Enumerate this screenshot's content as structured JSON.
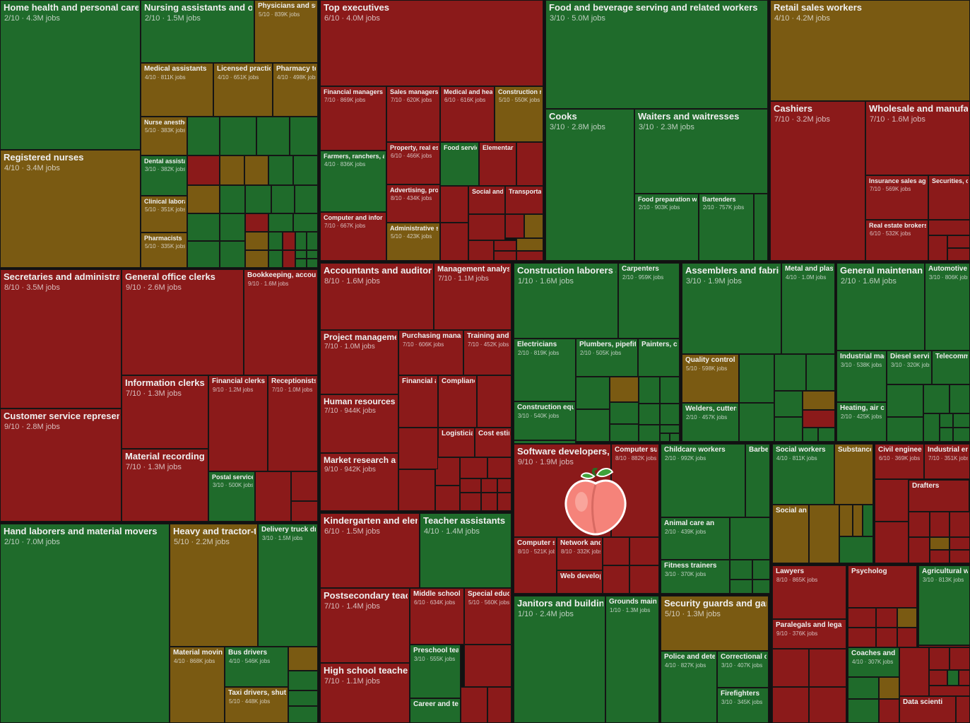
{
  "chart_data": {
    "type": "treemap",
    "title": "",
    "color_scale": {
      "low": "#1f6b2b",
      "mid": "#7a5a12",
      "high": "#8b1a1a"
    },
    "nodes": [
      {
        "name": "Home health and personal care",
        "score": "2/10",
        "jobs": "4.3M jobs"
      },
      {
        "name": "Registered nurses",
        "score": "4/10",
        "jobs": "3.4M jobs"
      },
      {
        "name": "Nursing assistants and or",
        "score": "2/10",
        "jobs": "1.5M jobs"
      },
      {
        "name": "Physicians and surg",
        "score": "5/10",
        "jobs": "839K jobs"
      },
      {
        "name": "Medical assistants",
        "score": "4/10",
        "jobs": "811K jobs"
      },
      {
        "name": "Licensed practical",
        "score": "4/10",
        "jobs": "651K jobs"
      },
      {
        "name": "Pharmacy tec",
        "score": "4/10",
        "jobs": "498K jobs"
      },
      {
        "name": "Nurse anesthe",
        "score": "5/10",
        "jobs": "383K jobs"
      },
      {
        "name": "Dental assista",
        "score": "3/10",
        "jobs": "382K jobs"
      },
      {
        "name": "Clinical labora",
        "score": "5/10",
        "jobs": "351K jobs"
      },
      {
        "name": "Pharmacists",
        "score": "5/10",
        "jobs": "335K jobs"
      },
      {
        "name": "Top executives",
        "score": "6/10",
        "jobs": "4.0M jobs"
      },
      {
        "name": "Financial managers",
        "score": "7/10",
        "jobs": "869K jobs"
      },
      {
        "name": "Sales managers",
        "score": "7/10",
        "jobs": "620K jobs"
      },
      {
        "name": "Medical and hea",
        "score": "6/10",
        "jobs": "616K jobs"
      },
      {
        "name": "Construction r",
        "score": "5/10",
        "jobs": "550K jobs"
      },
      {
        "name": "Farmers, ranchers, a",
        "score": "4/10",
        "jobs": "836K jobs"
      },
      {
        "name": "Property, real es",
        "score": "6/10",
        "jobs": "466K jobs"
      },
      {
        "name": "Food servic",
        "score": "",
        "jobs": ""
      },
      {
        "name": "Elementar",
        "score": "",
        "jobs": ""
      },
      {
        "name": "Advertising, pro",
        "score": "8/10",
        "jobs": "434K jobs"
      },
      {
        "name": "Social and",
        "score": "",
        "jobs": ""
      },
      {
        "name": "Transporta",
        "score": "",
        "jobs": ""
      },
      {
        "name": "Computer and infor",
        "score": "7/10",
        "jobs": "667K jobs"
      },
      {
        "name": "Administrative s",
        "score": "5/10",
        "jobs": "423K jobs"
      },
      {
        "name": "Food and beverage serving and related workers",
        "score": "3/10",
        "jobs": "5.0M jobs"
      },
      {
        "name": "Cooks",
        "score": "3/10",
        "jobs": "2.8M jobs"
      },
      {
        "name": "Waiters and waitresses",
        "score": "3/10",
        "jobs": "2.3M jobs"
      },
      {
        "name": "Food preparation w",
        "score": "2/10",
        "jobs": "903K jobs"
      },
      {
        "name": "Bartenders",
        "score": "2/10",
        "jobs": "757K jobs"
      },
      {
        "name": "Retail sales workers",
        "score": "4/10",
        "jobs": "4.2M jobs"
      },
      {
        "name": "Cashiers",
        "score": "7/10",
        "jobs": "3.2M jobs"
      },
      {
        "name": "Wholesale and manufac",
        "score": "7/10",
        "jobs": "1.6M jobs"
      },
      {
        "name": "Insurance sales age",
        "score": "7/10",
        "jobs": "569K jobs"
      },
      {
        "name": "Securities, c",
        "score": "",
        "jobs": ""
      },
      {
        "name": "Real estate brokers",
        "score": "6/10",
        "jobs": "532K jobs"
      },
      {
        "name": "Secretaries and administrat",
        "score": "8/10",
        "jobs": "3.5M jobs"
      },
      {
        "name": "Customer service represent",
        "score": "9/10",
        "jobs": "2.8M jobs"
      },
      {
        "name": "General office clerks",
        "score": "9/10",
        "jobs": "2.6M jobs"
      },
      {
        "name": "Bookkeeping, accou",
        "score": "9/10",
        "jobs": "1.6M jobs"
      },
      {
        "name": "Information clerks",
        "score": "7/10",
        "jobs": "1.3M jobs"
      },
      {
        "name": "Financial clerks",
        "score": "9/10",
        "jobs": "1.2M jobs"
      },
      {
        "name": "Receptionists",
        "score": "7/10",
        "jobs": "1.0M jobs"
      },
      {
        "name": "Material recording cl",
        "score": "7/10",
        "jobs": "1.3M jobs"
      },
      {
        "name": "Postal service",
        "score": "3/10",
        "jobs": "500K jobs"
      },
      {
        "name": "Hand laborers and material movers",
        "score": "2/10",
        "jobs": "7.0M jobs"
      },
      {
        "name": "Heavy and tractor-tr",
        "score": "5/10",
        "jobs": "2.2M jobs"
      },
      {
        "name": "Delivery truck driv",
        "score": "3/10",
        "jobs": "1.5M jobs"
      },
      {
        "name": "Material moving",
        "score": "4/10",
        "jobs": "868K jobs"
      },
      {
        "name": "Bus drivers",
        "score": "4/10",
        "jobs": "546K jobs"
      },
      {
        "name": "Taxi drivers, shuttle",
        "score": "5/10",
        "jobs": "448K jobs"
      },
      {
        "name": "Accountants and auditors",
        "score": "8/10",
        "jobs": "1.6M jobs"
      },
      {
        "name": "Management analys",
        "score": "7/10",
        "jobs": "1.1M jobs"
      },
      {
        "name": "Project managemen",
        "score": "7/10",
        "jobs": "1.0M jobs"
      },
      {
        "name": "Purchasing manage",
        "score": "7/10",
        "jobs": "606K jobs"
      },
      {
        "name": "Training and d",
        "score": "7/10",
        "jobs": "452K jobs"
      },
      {
        "name": "Human resources sp",
        "score": "7/10",
        "jobs": "944K jobs"
      },
      {
        "name": "Financial ar",
        "score": "",
        "jobs": ""
      },
      {
        "name": "Complianc",
        "score": "",
        "jobs": ""
      },
      {
        "name": "Logisticians",
        "score": "",
        "jobs": ""
      },
      {
        "name": "Cost estim",
        "score": "",
        "jobs": ""
      },
      {
        "name": "Market research ana",
        "score": "9/10",
        "jobs": "942K jobs"
      },
      {
        "name": "Kindergarten and elen",
        "score": "6/10",
        "jobs": "1.5M jobs"
      },
      {
        "name": "Teacher assistants",
        "score": "4/10",
        "jobs": "1.4M jobs"
      },
      {
        "name": "Postsecondary teach",
        "score": "7/10",
        "jobs": "1.4M jobs"
      },
      {
        "name": "Middle school te",
        "score": "6/10",
        "jobs": "634K jobs"
      },
      {
        "name": "Special educat",
        "score": "5/10",
        "jobs": "560K jobs"
      },
      {
        "name": "Preschool teac",
        "score": "3/10",
        "jobs": "555K jobs"
      },
      {
        "name": "High school teachers",
        "score": "7/10",
        "jobs": "1.1M jobs"
      },
      {
        "name": "Career and tec",
        "score": "",
        "jobs": ""
      },
      {
        "name": "Construction laborers a",
        "score": "1/10",
        "jobs": "1.6M jobs"
      },
      {
        "name": "Carpenters",
        "score": "2/10",
        "jobs": "959K jobs"
      },
      {
        "name": "Electricians",
        "score": "2/10",
        "jobs": "819K jobs"
      },
      {
        "name": "Plumbers, pipefitte",
        "score": "2/10",
        "jobs": "505K jobs"
      },
      {
        "name": "Painters, cor",
        "score": "",
        "jobs": ""
      },
      {
        "name": "Construction equip",
        "score": "3/10",
        "jobs": "540K jobs"
      },
      {
        "name": "Assemblers and fabric",
        "score": "3/10",
        "jobs": "1.9M jobs"
      },
      {
        "name": "Metal and plasti",
        "score": "4/10",
        "jobs": "1.0M jobs"
      },
      {
        "name": "Quality control in",
        "score": "5/10",
        "jobs": "598K jobs"
      },
      {
        "name": "Welders, cutters,",
        "score": "2/10",
        "jobs": "457K jobs"
      },
      {
        "name": "General maintenance",
        "score": "2/10",
        "jobs": "1.6M jobs"
      },
      {
        "name": "Automotive s",
        "score": "3/10",
        "jobs": "806K jobs"
      },
      {
        "name": "Industrial mach",
        "score": "3/10",
        "jobs": "538K jobs"
      },
      {
        "name": "Diesel service",
        "score": "3/10",
        "jobs": "320K jobs"
      },
      {
        "name": "Telecomm",
        "score": "",
        "jobs": ""
      },
      {
        "name": "Heating, air co",
        "score": "2/10",
        "jobs": "425K jobs"
      },
      {
        "name": "Software developers, (",
        "score": "9/10",
        "jobs": "1.9M jobs"
      },
      {
        "name": "Computer sup",
        "score": "8/10",
        "jobs": "882K jobs"
      },
      {
        "name": "Computer sy",
        "score": "8/10",
        "jobs": "521K jobs"
      },
      {
        "name": "Network and",
        "score": "8/10",
        "jobs": "332K jobs"
      },
      {
        "name": "Web develop",
        "score": "",
        "jobs": ""
      },
      {
        "name": "Childcare workers",
        "score": "2/10",
        "jobs": "992K jobs"
      },
      {
        "name": "Barbers, hair",
        "score": "",
        "jobs": ""
      },
      {
        "name": "Animal care an",
        "score": "2/10",
        "jobs": "439K jobs"
      },
      {
        "name": "Fitness trainers",
        "score": "3/10",
        "jobs": "370K jobs"
      },
      {
        "name": "Social workers",
        "score": "4/10",
        "jobs": "811K jobs"
      },
      {
        "name": "Substance",
        "score": "",
        "jobs": ""
      },
      {
        "name": "Social and",
        "score": "",
        "jobs": ""
      },
      {
        "name": "Civil engineers",
        "score": "6/10",
        "jobs": "369K jobs"
      },
      {
        "name": "Industrial eng",
        "score": "7/10",
        "jobs": "351K jobs"
      },
      {
        "name": "Drafters",
        "score": "",
        "jobs": ""
      },
      {
        "name": "Janitors and building",
        "score": "1/10",
        "jobs": "2.4M jobs"
      },
      {
        "name": "Grounds mainte",
        "score": "1/10",
        "jobs": "1.3M jobs"
      },
      {
        "name": "Security guards and gam",
        "score": "5/10",
        "jobs": "1.3M jobs"
      },
      {
        "name": "Police and detec",
        "score": "4/10",
        "jobs": "827K jobs"
      },
      {
        "name": "Correctional offi",
        "score": "3/10",
        "jobs": "407K jobs"
      },
      {
        "name": "Firefighters",
        "score": "3/10",
        "jobs": "345K jobs"
      },
      {
        "name": "Lawyers",
        "score": "8/10",
        "jobs": "865K jobs"
      },
      {
        "name": "Paralegals and lega",
        "score": "9/10",
        "jobs": "376K jobs"
      },
      {
        "name": "Psycholog",
        "score": "",
        "jobs": ""
      },
      {
        "name": "Agricultural wo",
        "score": "3/10",
        "jobs": "813K jobs"
      },
      {
        "name": "Coaches and s",
        "score": "4/10",
        "jobs": "307K jobs"
      },
      {
        "name": "Data scienti",
        "score": "",
        "jobs": ""
      }
    ]
  },
  "logo": {
    "name": "peach-icon",
    "colors": {
      "fruit": "#f5837a",
      "leaf": "#3fa23a",
      "outline": "#ffffff"
    }
  }
}
